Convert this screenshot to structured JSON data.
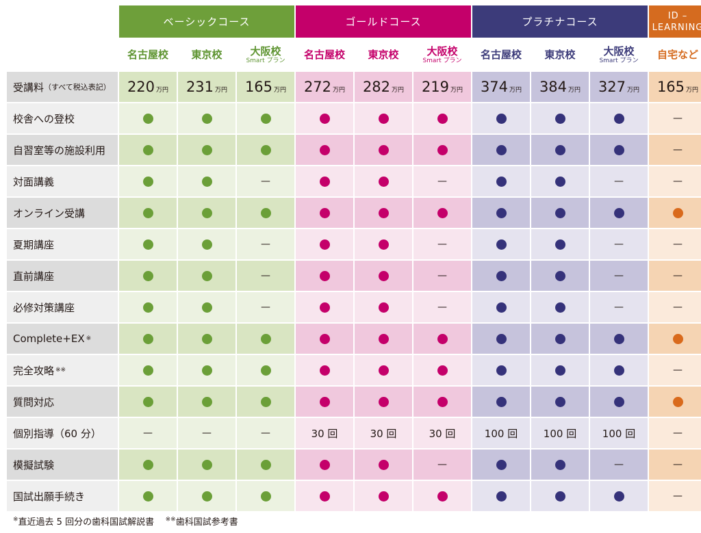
{
  "courses": [
    {
      "key": "basic",
      "name": "ベーシックコース",
      "span": 3
    },
    {
      "key": "gold",
      "name": "ゴールドコース",
      "span": 3
    },
    {
      "key": "plat",
      "name": "プラチナコース",
      "span": 3
    },
    {
      "key": "idl",
      "name_line1": "ID –",
      "name_line2": "LEARNING",
      "span": 1
    }
  ],
  "schools": [
    {
      "course": "basic",
      "name": "名古屋校",
      "sub": ""
    },
    {
      "course": "basic",
      "name": "東京校",
      "sub": ""
    },
    {
      "course": "basic",
      "name": "大阪校",
      "sub": "Smart プラン"
    },
    {
      "course": "gold",
      "name": "名古屋校",
      "sub": ""
    },
    {
      "course": "gold",
      "name": "東京校",
      "sub": ""
    },
    {
      "course": "gold",
      "name": "大阪校",
      "sub": "Smart プラン"
    },
    {
      "course": "plat",
      "name": "名古屋校",
      "sub": ""
    },
    {
      "course": "plat",
      "name": "東京校",
      "sub": ""
    },
    {
      "course": "plat",
      "name": "大阪校",
      "sub": "Smart プラン"
    },
    {
      "course": "idl",
      "name": "自宅など",
      "sub": ""
    }
  ],
  "fee_row": {
    "label": "受講料",
    "label_note": "（すべて税込表記）",
    "unit": "万円",
    "values": [
      "220",
      "231",
      "165",
      "272",
      "282",
      "219",
      "374",
      "384",
      "327",
      "165"
    ]
  },
  "rows": [
    {
      "label": "校舎への登校",
      "sup": "",
      "cells": [
        "dot",
        "dot",
        "dot",
        "dot",
        "dot",
        "dot",
        "dot",
        "dot",
        "dot",
        "—"
      ]
    },
    {
      "label": "自習室等の施設利用",
      "sup": "",
      "cells": [
        "dot",
        "dot",
        "dot",
        "dot",
        "dot",
        "dot",
        "dot",
        "dot",
        "dot",
        "—"
      ]
    },
    {
      "label": "対面講義",
      "sup": "",
      "cells": [
        "dot",
        "dot",
        "—",
        "dot",
        "dot",
        "—",
        "dot",
        "dot",
        "—",
        "—"
      ]
    },
    {
      "label": "オンライン受講",
      "sup": "",
      "cells": [
        "dot",
        "dot",
        "dot",
        "dot",
        "dot",
        "dot",
        "dot",
        "dot",
        "dot",
        "dot"
      ]
    },
    {
      "label": "夏期講座",
      "sup": "",
      "cells": [
        "dot",
        "dot",
        "—",
        "dot",
        "dot",
        "—",
        "dot",
        "dot",
        "—",
        "—"
      ]
    },
    {
      "label": "直前講座",
      "sup": "",
      "cells": [
        "dot",
        "dot",
        "—",
        "dot",
        "dot",
        "—",
        "dot",
        "dot",
        "—",
        "—"
      ]
    },
    {
      "label": "必修対策講座",
      "sup": "",
      "cells": [
        "dot",
        "dot",
        "—",
        "dot",
        "dot",
        "—",
        "dot",
        "dot",
        "—",
        "—"
      ]
    },
    {
      "label": "Complete+EX",
      "sup": "※",
      "cells": [
        "dot",
        "dot",
        "dot",
        "dot",
        "dot",
        "dot",
        "dot",
        "dot",
        "dot",
        "dot"
      ]
    },
    {
      "label": "完全攻略",
      "sup": "※※",
      "cells": [
        "dot",
        "dot",
        "dot",
        "dot",
        "dot",
        "dot",
        "dot",
        "dot",
        "dot",
        "—"
      ]
    },
    {
      "label": "質問対応",
      "sup": "",
      "cells": [
        "dot",
        "dot",
        "dot",
        "dot",
        "dot",
        "dot",
        "dot",
        "dot",
        "dot",
        "dot"
      ]
    },
    {
      "label": "個別指導（60 分）",
      "sup": "",
      "cells": [
        "—",
        "—",
        "—",
        "30 回",
        "30 回",
        "30 回",
        "100 回",
        "100 回",
        "100 回",
        "—"
      ]
    },
    {
      "label": "模擬試験",
      "sup": "",
      "cells": [
        "dot",
        "dot",
        "dot",
        "dot",
        "dot",
        "—",
        "dot",
        "dot",
        "—",
        "—"
      ]
    },
    {
      "label": "国試出願手続き",
      "sup": "",
      "cells": [
        "dot",
        "dot",
        "dot",
        "dot",
        "dot",
        "dot",
        "dot",
        "dot",
        "dot",
        "—"
      ]
    }
  ],
  "footnote": {
    "mark1": "※",
    "text1": "直近過去 5 回分の歯科国試解説書",
    "mark2": "※※",
    "text2": "歯科国試参考書"
  },
  "colors": {
    "basic": "#6e9f3a",
    "gold": "#c4006a",
    "plat": "#3c3b7a",
    "idl": "#d56b1f"
  }
}
